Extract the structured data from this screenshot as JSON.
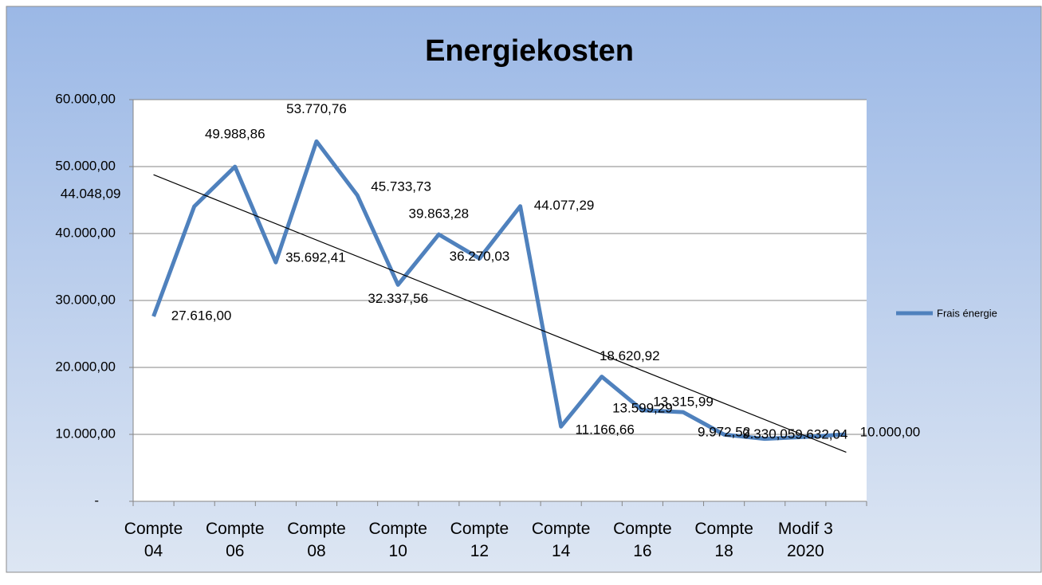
{
  "chart_data": {
    "type": "line",
    "title": "Energiekosten",
    "categories": [
      "Compte 04",
      null,
      "Compte 06",
      null,
      "Compte 08",
      null,
      "Compte 10",
      null,
      "Compte 12",
      null,
      "Compte 14",
      null,
      "Compte 16",
      null,
      "Compte 18",
      null,
      "Modif 3 2020",
      null
    ],
    "series": [
      {
        "name": "Frais énergie",
        "color": "#4f81bd",
        "values": [
          27616.0,
          44048.09,
          49988.86,
          35692.41,
          53770.76,
          45733.73,
          32337.56,
          39863.28,
          36270.03,
          44077.29,
          11166.66,
          18620.92,
          13599.29,
          13315.99,
          9972.52,
          9330.05,
          9632.04,
          10000.0
        ],
        "value_labels": [
          "27.616,00",
          "44.048,09",
          "49.988,86",
          "35.692,41",
          "53.770,76",
          "45.733,73",
          "32.337,56",
          "39.863,28",
          "36.270,03",
          "44.077,29",
          "11.166,66",
          "18.620,92",
          "13.599,29",
          "13.315,99",
          "9.972,52",
          "9.330,05",
          "9.632,04",
          "10.000,00"
        ]
      }
    ],
    "trendline": {
      "type": "linear",
      "color": "#000000"
    },
    "ylim": [
      0,
      60000
    ],
    "yticks": [
      {
        "value": 0,
        "label": "-"
      },
      {
        "value": 10000,
        "label": "10.000,00"
      },
      {
        "value": 20000,
        "label": "20.000,00"
      },
      {
        "value": 30000,
        "label": "30.000,00"
      },
      {
        "value": 40000,
        "label": "40.000,00"
      },
      {
        "value": 50000,
        "label": "50.000,00"
      },
      {
        "value": 60000,
        "label": "60.000,00"
      }
    ],
    "grid": true,
    "legend": "right"
  }
}
